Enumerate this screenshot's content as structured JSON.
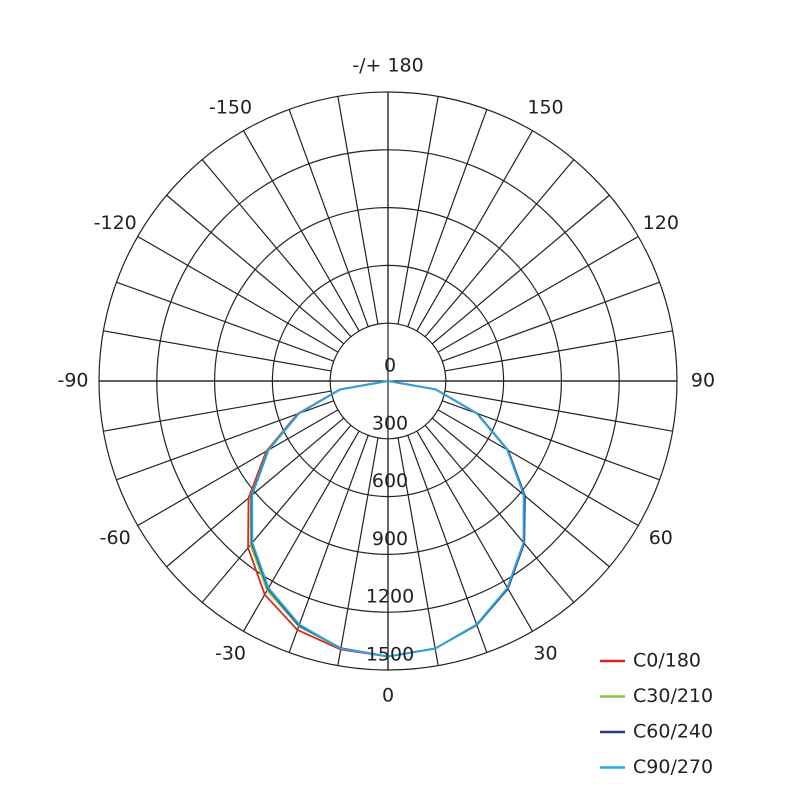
{
  "chart_data": {
    "type": "polar",
    "x": [
      -90,
      -80,
      -70,
      -60,
      -50,
      -40,
      -30,
      -20,
      -10,
      0,
      10,
      20,
      30,
      40,
      50,
      60,
      70,
      80,
      90
    ],
    "series": [
      {
        "name": "C0/180",
        "color": "#d9262b",
        "values": [
          0,
          255,
          500,
          730,
          945,
          1130,
          1280,
          1375,
          1415,
          1430,
          1410,
          1345,
          1240,
          1095,
          920,
          715,
          490,
          250,
          0
        ]
      },
      {
        "name": "C30/210",
        "color": "#8cc63f",
        "values": [
          0,
          252,
          495,
          722,
          930,
          1110,
          1255,
          1355,
          1410,
          1430,
          1410,
          1345,
          1240,
          1098,
          925,
          718,
          492,
          250,
          0
        ]
      },
      {
        "name": "C60/240",
        "color": "#2b3a8c",
        "values": [
          0,
          250,
          492,
          718,
          925,
          1100,
          1245,
          1350,
          1408,
          1430,
          1410,
          1348,
          1245,
          1100,
          928,
          720,
          493,
          251,
          0
        ]
      },
      {
        "name": "C90/270",
        "color": "#29a8e0",
        "values": [
          0,
          250,
          490,
          715,
          920,
          1095,
          1240,
          1345,
          1410,
          1430,
          1410,
          1345,
          1240,
          1095,
          920,
          715,
          490,
          250,
          0
        ]
      }
    ],
    "rlim": [
      0,
      1500
    ],
    "rticks": [
      0,
      300,
      600,
      900,
      1200,
      1500
    ],
    "angleticks": [
      0,
      30,
      60,
      90,
      120,
      150,
      {
        "value": 180,
        "label": "-/+ 180"
      },
      -150,
      -120,
      -90,
      -60,
      -30
    ],
    "legend": "lower right"
  }
}
